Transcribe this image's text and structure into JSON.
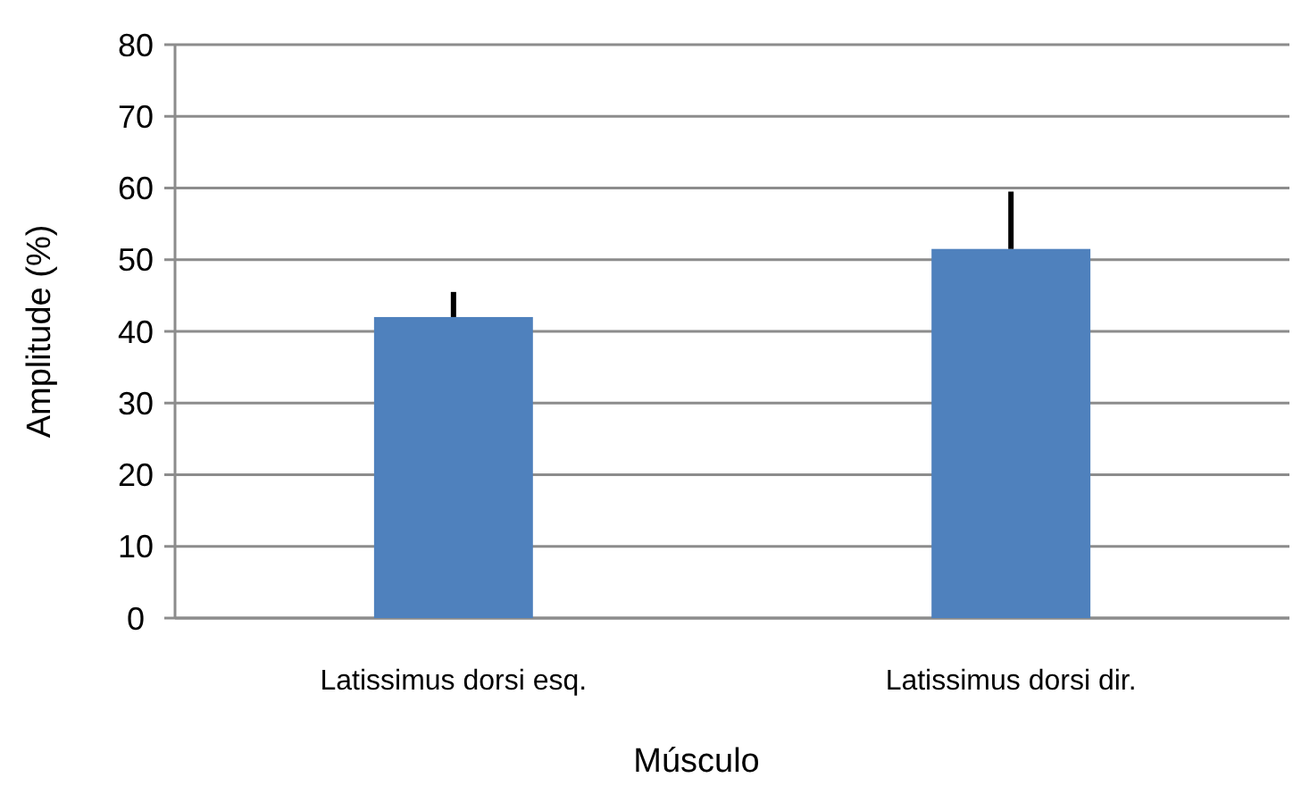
{
  "chart_data": {
    "type": "bar",
    "xlabel": "Músculo",
    "ylabel": "Amplitude (%)",
    "categories": [
      "Latissimus dorsi esq.",
      "Latissimus dorsi dir."
    ],
    "values": [
      42,
      51.5
    ],
    "color": "#4f81bd",
    "errors": [
      [
        42,
        45.5
      ],
      [
        51.5,
        59.5
      ]
    ],
    "ylim": [
      0,
      80
    ],
    "yticks": [
      0,
      10,
      20,
      30,
      40,
      50,
      60,
      70,
      80
    ],
    "grid": "y"
  }
}
